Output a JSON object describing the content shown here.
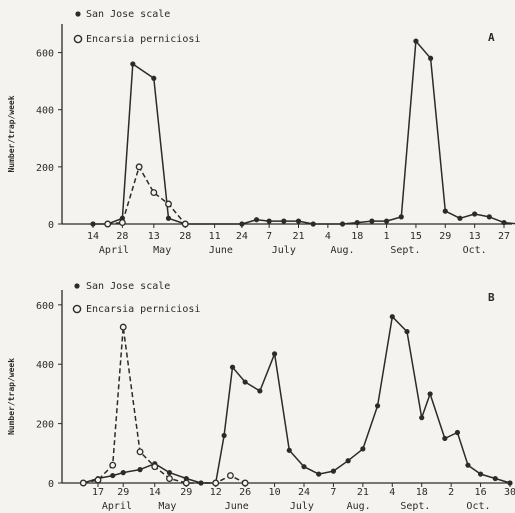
{
  "chart_data": [
    {
      "type": "line",
      "panel_label": "A",
      "ylabel": "Number/trap/week",
      "ylim": [
        0,
        700
      ],
      "yticks": [
        0,
        200,
        400,
        600
      ],
      "legend": [
        "San Jose scale",
        "Encarsia perniciosi"
      ],
      "legend_position": "top-left",
      "x_tick_labels": [
        "14",
        "28",
        "13",
        "28",
        "11",
        "24",
        "7",
        "21",
        "4",
        "18",
        "1",
        "15",
        "29",
        "13",
        "27"
      ],
      "months": [
        "April",
        "May",
        "June",
        "July",
        "Aug.",
        "Sept.",
        "Oct."
      ],
      "series": [
        {
          "name": "San Jose scale",
          "marker": "filled",
          "line": "solid",
          "points": [
            {
              "x": "Apr 14",
              "y": 0
            },
            {
              "x": "Apr 21",
              "y": 0
            },
            {
              "x": "Apr 28",
              "y": 20
            },
            {
              "x": "May 3",
              "y": 560
            },
            {
              "x": "May 13",
              "y": 510
            },
            {
              "x": "May 20",
              "y": 20
            },
            {
              "x": "May 28",
              "y": 0
            },
            {
              "x": "Jun 24",
              "y": 0
            },
            {
              "x": "Jul 1",
              "y": 15
            },
            {
              "x": "Jul 7",
              "y": 10
            },
            {
              "x": "Jul 14",
              "y": 10
            },
            {
              "x": "Jul 21",
              "y": 10
            },
            {
              "x": "Jul 28",
              "y": 0
            },
            {
              "x": "Aug 11",
              "y": 0
            },
            {
              "x": "Aug 18",
              "y": 5
            },
            {
              "x": "Aug 25",
              "y": 10
            },
            {
              "x": "Sep 1",
              "y": 10
            },
            {
              "x": "Sep 8",
              "y": 25
            },
            {
              "x": "Sep 15",
              "y": 640
            },
            {
              "x": "Sep 22",
              "y": 580
            },
            {
              "x": "Sep 29",
              "y": 45
            },
            {
              "x": "Oct 6",
              "y": 20
            },
            {
              "x": "Oct 13",
              "y": 35
            },
            {
              "x": "Oct 20",
              "y": 25
            },
            {
              "x": "Oct 27",
              "y": 5
            },
            {
              "x": "Nov 3",
              "y": 0
            }
          ]
        },
        {
          "name": "Encarsia perniciosi",
          "marker": "open",
          "line": "dashed",
          "points": [
            {
              "x": "Apr 21",
              "y": 0
            },
            {
              "x": "Apr 28",
              "y": 5
            },
            {
              "x": "May 6",
              "y": 200
            },
            {
              "x": "May 13",
              "y": 110
            },
            {
              "x": "May 20",
              "y": 70
            },
            {
              "x": "May 28",
              "y": 0
            }
          ]
        }
      ]
    },
    {
      "type": "line",
      "panel_label": "B",
      "ylabel": "Number/trap/week",
      "ylim": [
        0,
        650
      ],
      "yticks": [
        0,
        200,
        400,
        600
      ],
      "legend": [
        "San Jose scale",
        "Encarsia perniciosi"
      ],
      "legend_position": "top-left",
      "x_tick_labels": [
        "17",
        "29",
        "14",
        "29",
        "12",
        "26",
        "10",
        "24",
        "7",
        "21",
        "4",
        "18",
        "2",
        "16",
        "30"
      ],
      "months": [
        "April",
        "May",
        "June",
        "July",
        "Aug.",
        "Sept.",
        "Oct."
      ],
      "series": [
        {
          "name": "San Jose scale",
          "marker": "filled",
          "line": "solid",
          "points": [
            {
              "x": "Apr 10",
              "y": 0
            },
            {
              "x": "Apr 17",
              "y": 15
            },
            {
              "x": "Apr 24",
              "y": 25
            },
            {
              "x": "Apr 29",
              "y": 35
            },
            {
              "x": "May 7",
              "y": 45
            },
            {
              "x": "May 14",
              "y": 65
            },
            {
              "x": "May 21",
              "y": 35
            },
            {
              "x": "May 29",
              "y": 15
            },
            {
              "x": "Jun 5",
              "y": 0
            },
            {
              "x": "Jun 12",
              "y": 0
            },
            {
              "x": "Jun 16",
              "y": 160
            },
            {
              "x": "Jun 20",
              "y": 390
            },
            {
              "x": "Jun 26",
              "y": 340
            },
            {
              "x": "Jul 3",
              "y": 310
            },
            {
              "x": "Jul 10",
              "y": 435
            },
            {
              "x": "Jul 17",
              "y": 110
            },
            {
              "x": "Jul 24",
              "y": 55
            },
            {
              "x": "Jul 31",
              "y": 30
            },
            {
              "x": "Aug 7",
              "y": 40
            },
            {
              "x": "Aug 14",
              "y": 75
            },
            {
              "x": "Aug 21",
              "y": 115
            },
            {
              "x": "Aug 28",
              "y": 260
            },
            {
              "x": "Sep 4",
              "y": 560
            },
            {
              "x": "Sep 11",
              "y": 510
            },
            {
              "x": "Sep 18",
              "y": 220
            },
            {
              "x": "Sep 22",
              "y": 300
            },
            {
              "x": "Sep 29",
              "y": 150
            },
            {
              "x": "Oct 5",
              "y": 170
            },
            {
              "x": "Oct 10",
              "y": 60
            },
            {
              "x": "Oct 16",
              "y": 30
            },
            {
              "x": "Oct 23",
              "y": 15
            },
            {
              "x": "Oct 30",
              "y": 0
            }
          ]
        },
        {
          "name": "Encarsia perniciosi",
          "marker": "open",
          "line": "dashed",
          "points": [
            {
              "x": "Apr 10",
              "y": 0
            },
            {
              "x": "Apr 17",
              "y": 10
            },
            {
              "x": "Apr 24",
              "y": 60
            },
            {
              "x": "Apr 29",
              "y": 525
            },
            {
              "x": "May 7",
              "y": 105
            },
            {
              "x": "May 14",
              "y": 55
            },
            {
              "x": "May 21",
              "y": 15
            },
            {
              "x": "May 29",
              "y": 0
            },
            {
              "x": "Jun 12",
              "y": 0
            },
            {
              "x": "Jun 19",
              "y": 25
            },
            {
              "x": "Jun 26",
              "y": 0
            }
          ]
        }
      ]
    }
  ]
}
